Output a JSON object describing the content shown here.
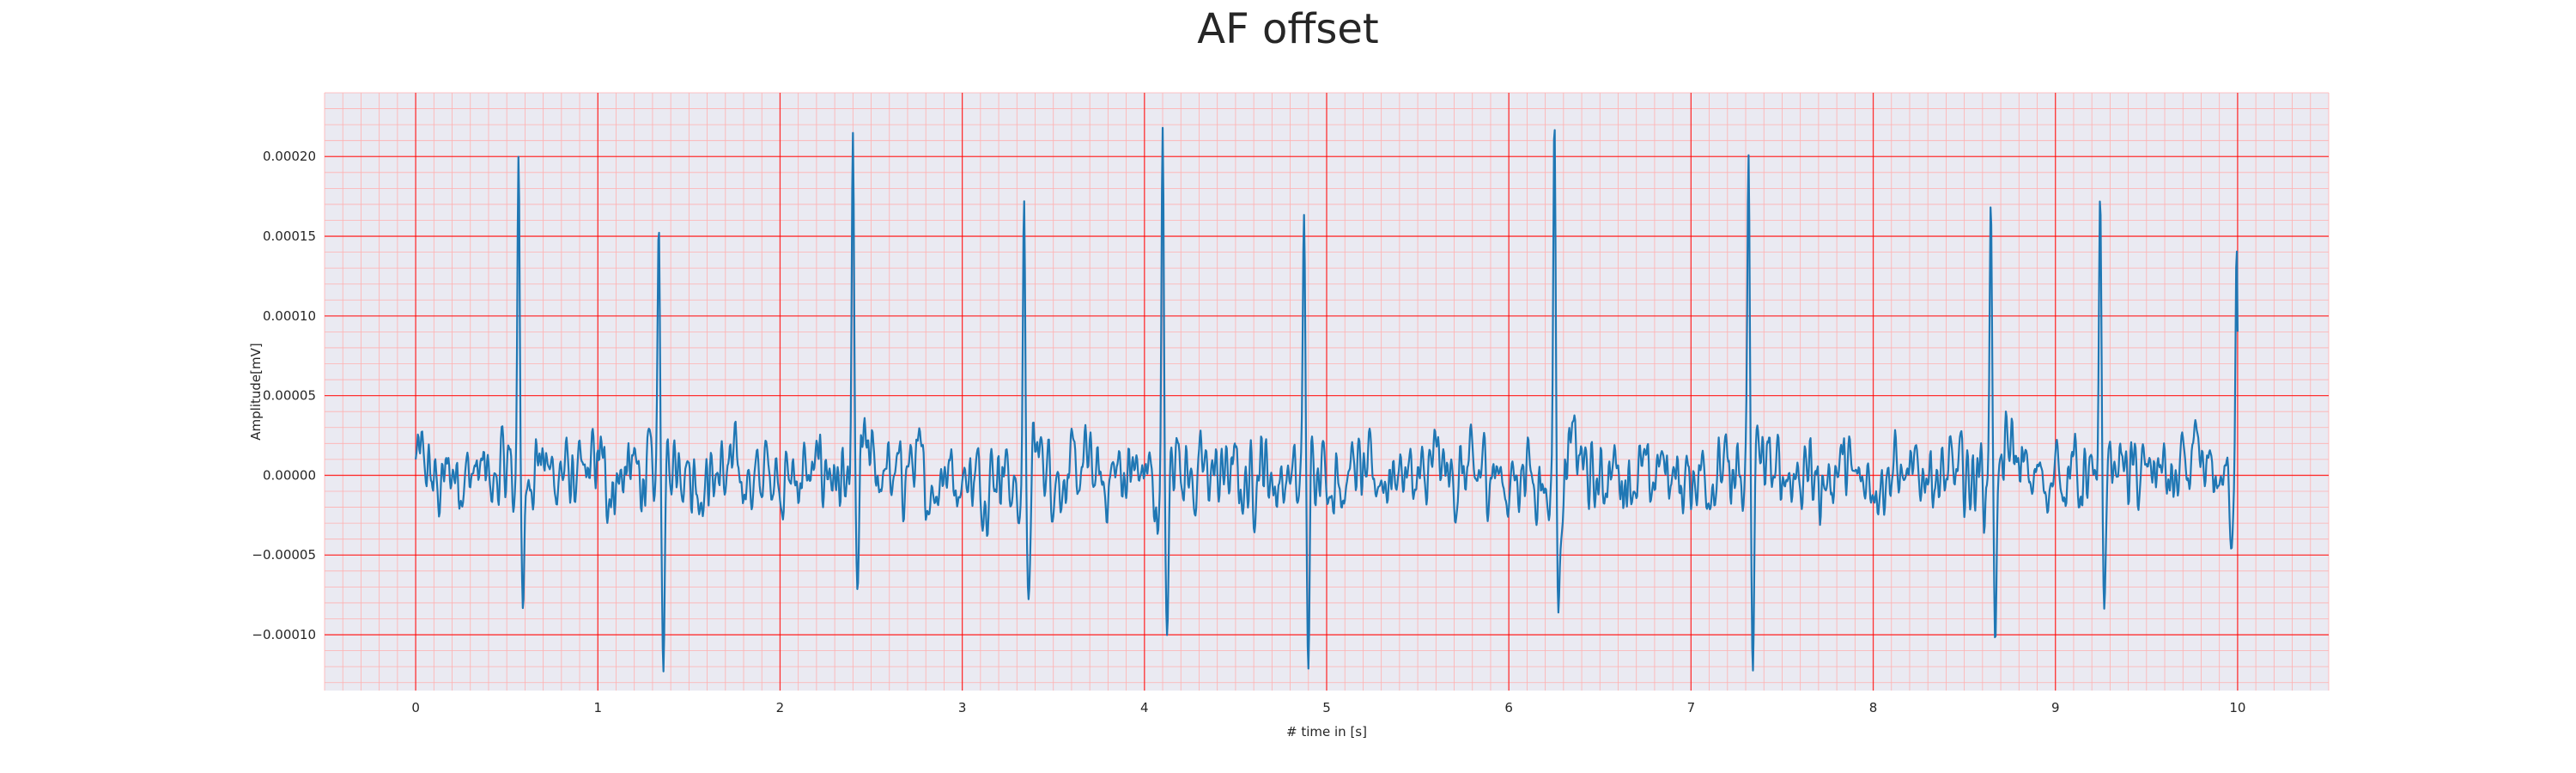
{
  "chart_data": {
    "type": "line",
    "title": "AF offset",
    "xlabel": "# time in [s]",
    "ylabel": "Amplitude[mV]",
    "xlim": [
      -0.5,
      10.5
    ],
    "ylim": [
      -0.000135,
      0.00024
    ],
    "x_ticks": [
      0,
      1,
      2,
      3,
      4,
      5,
      6,
      7,
      8,
      9,
      10
    ],
    "x_tick_labels": [
      "0",
      "1",
      "2",
      "3",
      "4",
      "5",
      "6",
      "7",
      "8",
      "9",
      "10"
    ],
    "y_ticks": [
      -0.0001,
      -5e-05,
      0.0,
      5e-05,
      0.0001,
      0.00015,
      0.0002
    ],
    "y_tick_labels": [
      "−0.00010",
      "−0.00005",
      "0.00000",
      "0.00005",
      "0.00010",
      "0.00015",
      "0.00020"
    ],
    "grid": true,
    "minor_grid": true,
    "sample_rate_hz": 250,
    "duration_s": 10,
    "qrs_events": [
      {
        "t": 0.565,
        "peak": 0.000216,
        "trough": -0.0001
      },
      {
        "t": 1.335,
        "peak": 0.000167,
        "trough": -0.000115
      },
      {
        "t": 2.4,
        "peak": 0.000193,
        "trough": -9.4e-05
      },
      {
        "t": 3.34,
        "peak": 0.000185,
        "trough": -0.000105
      },
      {
        "t": 4.1,
        "peak": 0.0002,
        "trough": -0.000118
      },
      {
        "t": 4.875,
        "peak": 0.000171,
        "trough": -0.000116
      },
      {
        "t": 6.25,
        "peak": 0.000225,
        "trough": -8.9e-05
      },
      {
        "t": 7.315,
        "peak": 0.000196,
        "trough": -0.000111
      },
      {
        "t": 8.645,
        "peak": 0.000181,
        "trough": -8e-05
      },
      {
        "t": 9.245,
        "peak": 0.000171,
        "trough": -9.3e-05
      },
      {
        "t": 9.995,
        "peak": 0.000167,
        "trough": -3.2e-05
      }
    ],
    "series": [
      {
        "color": "#1f77b4",
        "x_start": 0,
        "x_end": 10
      }
    ],
    "colors": {
      "background": "#eaeaf2",
      "major_grid": "#ff0000",
      "minor_grid": "#ffb0b0",
      "line": "#1f77b4"
    }
  }
}
